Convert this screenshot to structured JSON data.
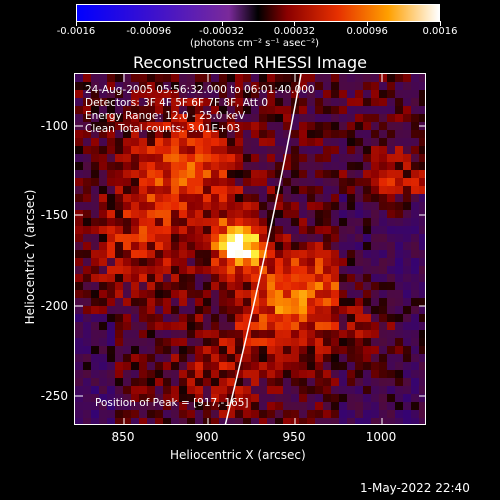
{
  "colorbar": {
    "tick_labels": [
      "-0.0016",
      "-0.00096",
      "-0.00032",
      "0.00032",
      "0.00096",
      "0.0016"
    ],
    "units": "(photons cm⁻² s⁻¹ asec⁻²)"
  },
  "title": "Reconstructed RHESSI Image",
  "info": {
    "line1": "24-Aug-2005 05:56:32.000 to 06:01:40.000",
    "line2": "Detectors: 3F 4F 5F 6F 7F 8F, Att 0",
    "line3": "Energy Range: 12.0 - 25.0 keV",
    "line4": "Clean     Total counts: 3.01E+03",
    "peak": "Position of Peak = [917,-165]"
  },
  "axes": {
    "x_label": "Heliocentric X (arcsec)",
    "y_label": "Heliocentric Y (arcsec)",
    "x_ticks": [
      "850",
      "900",
      "950",
      "1000"
    ],
    "y_ticks": [
      "-100",
      "-150",
      "-200",
      "-250"
    ]
  },
  "footer": "1-May-2022 22:40"
}
